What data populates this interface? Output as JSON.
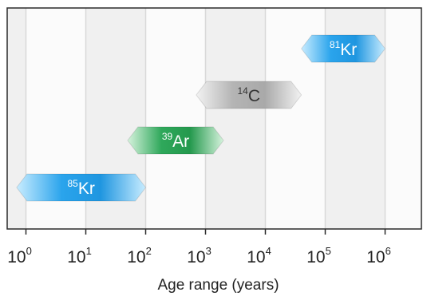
{
  "chart_data": {
    "type": "range-bar",
    "title": "",
    "xlabel": "Age range (years)",
    "ylabel": "",
    "x_scale": "log",
    "xlim": [
      1,
      1000000
    ],
    "x_ticks": [
      {
        "base": "10",
        "exp": "0",
        "value": 1
      },
      {
        "base": "10",
        "exp": "1",
        "value": 10
      },
      {
        "base": "10",
        "exp": "2",
        "value": 100
      },
      {
        "base": "10",
        "exp": "3",
        "value": 1000
      },
      {
        "base": "10",
        "exp": "4",
        "value": 10000
      },
      {
        "base": "10",
        "exp": "5",
        "value": 100000
      },
      {
        "base": "10",
        "exp": "6",
        "value": 1000000
      }
    ],
    "grid": true,
    "bands": true,
    "series": [
      {
        "mass": "85",
        "element": "Kr",
        "range": [
          0.7,
          100
        ],
        "color": "#2a9ee0"
      },
      {
        "mass": "39",
        "element": "Ar",
        "range": [
          50,
          2000
        ],
        "color": "#2fa55a"
      },
      {
        "mass": "14",
        "element": "C",
        "range": [
          700,
          40000
        ],
        "color": "#a6a6a6"
      },
      {
        "mass": "81",
        "element": "Kr",
        "range": [
          40000,
          1000000
        ],
        "color": "#2a9ee0"
      }
    ]
  }
}
